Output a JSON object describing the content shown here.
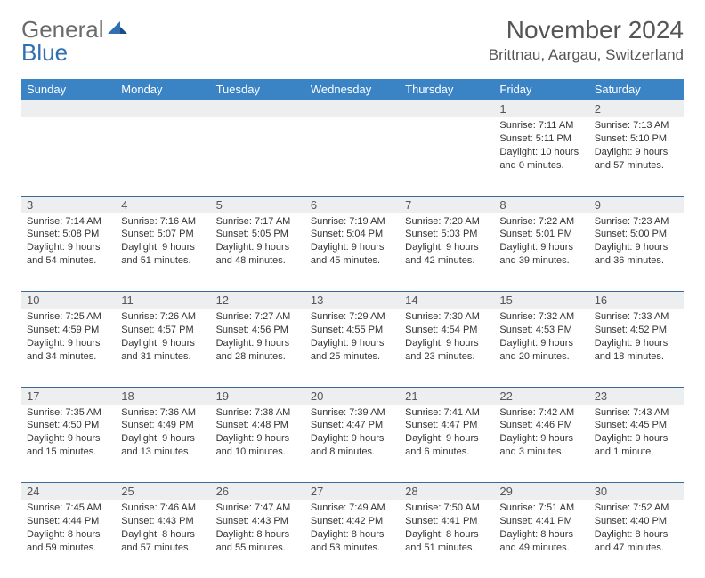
{
  "logo": {
    "general": "General",
    "blue": "Blue"
  },
  "title": "November 2024",
  "location": "Brittnau, Aargau, Switzerland",
  "day_headers": [
    "Sunday",
    "Monday",
    "Tuesday",
    "Wednesday",
    "Thursday",
    "Friday",
    "Saturday"
  ],
  "colors": {
    "header_bg": "#3a84c5",
    "header_text": "#ffffff",
    "daynum_bg": "#eceef0",
    "border": "#3a6a9a",
    "logo_gray": "#6b6b6b",
    "logo_blue": "#2f6fb3"
  },
  "weeks": [
    [
      null,
      null,
      null,
      null,
      null,
      {
        "n": "1",
        "sunrise": "7:11 AM",
        "sunset": "5:11 PM",
        "daylight": "10 hours and 0 minutes."
      },
      {
        "n": "2",
        "sunrise": "7:13 AM",
        "sunset": "5:10 PM",
        "daylight": "9 hours and 57 minutes."
      }
    ],
    [
      {
        "n": "3",
        "sunrise": "7:14 AM",
        "sunset": "5:08 PM",
        "daylight": "9 hours and 54 minutes."
      },
      {
        "n": "4",
        "sunrise": "7:16 AM",
        "sunset": "5:07 PM",
        "daylight": "9 hours and 51 minutes."
      },
      {
        "n": "5",
        "sunrise": "7:17 AM",
        "sunset": "5:05 PM",
        "daylight": "9 hours and 48 minutes."
      },
      {
        "n": "6",
        "sunrise": "7:19 AM",
        "sunset": "5:04 PM",
        "daylight": "9 hours and 45 minutes."
      },
      {
        "n": "7",
        "sunrise": "7:20 AM",
        "sunset": "5:03 PM",
        "daylight": "9 hours and 42 minutes."
      },
      {
        "n": "8",
        "sunrise": "7:22 AM",
        "sunset": "5:01 PM",
        "daylight": "9 hours and 39 minutes."
      },
      {
        "n": "9",
        "sunrise": "7:23 AM",
        "sunset": "5:00 PM",
        "daylight": "9 hours and 36 minutes."
      }
    ],
    [
      {
        "n": "10",
        "sunrise": "7:25 AM",
        "sunset": "4:59 PM",
        "daylight": "9 hours and 34 minutes."
      },
      {
        "n": "11",
        "sunrise": "7:26 AM",
        "sunset": "4:57 PM",
        "daylight": "9 hours and 31 minutes."
      },
      {
        "n": "12",
        "sunrise": "7:27 AM",
        "sunset": "4:56 PM",
        "daylight": "9 hours and 28 minutes."
      },
      {
        "n": "13",
        "sunrise": "7:29 AM",
        "sunset": "4:55 PM",
        "daylight": "9 hours and 25 minutes."
      },
      {
        "n": "14",
        "sunrise": "7:30 AM",
        "sunset": "4:54 PM",
        "daylight": "9 hours and 23 minutes."
      },
      {
        "n": "15",
        "sunrise": "7:32 AM",
        "sunset": "4:53 PM",
        "daylight": "9 hours and 20 minutes."
      },
      {
        "n": "16",
        "sunrise": "7:33 AM",
        "sunset": "4:52 PM",
        "daylight": "9 hours and 18 minutes."
      }
    ],
    [
      {
        "n": "17",
        "sunrise": "7:35 AM",
        "sunset": "4:50 PM",
        "daylight": "9 hours and 15 minutes."
      },
      {
        "n": "18",
        "sunrise": "7:36 AM",
        "sunset": "4:49 PM",
        "daylight": "9 hours and 13 minutes."
      },
      {
        "n": "19",
        "sunrise": "7:38 AM",
        "sunset": "4:48 PM",
        "daylight": "9 hours and 10 minutes."
      },
      {
        "n": "20",
        "sunrise": "7:39 AM",
        "sunset": "4:47 PM",
        "daylight": "9 hours and 8 minutes."
      },
      {
        "n": "21",
        "sunrise": "7:41 AM",
        "sunset": "4:47 PM",
        "daylight": "9 hours and 6 minutes."
      },
      {
        "n": "22",
        "sunrise": "7:42 AM",
        "sunset": "4:46 PM",
        "daylight": "9 hours and 3 minutes."
      },
      {
        "n": "23",
        "sunrise": "7:43 AM",
        "sunset": "4:45 PM",
        "daylight": "9 hours and 1 minute."
      }
    ],
    [
      {
        "n": "24",
        "sunrise": "7:45 AM",
        "sunset": "4:44 PM",
        "daylight": "8 hours and 59 minutes."
      },
      {
        "n": "25",
        "sunrise": "7:46 AM",
        "sunset": "4:43 PM",
        "daylight": "8 hours and 57 minutes."
      },
      {
        "n": "26",
        "sunrise": "7:47 AM",
        "sunset": "4:43 PM",
        "daylight": "8 hours and 55 minutes."
      },
      {
        "n": "27",
        "sunrise": "7:49 AM",
        "sunset": "4:42 PM",
        "daylight": "8 hours and 53 minutes."
      },
      {
        "n": "28",
        "sunrise": "7:50 AM",
        "sunset": "4:41 PM",
        "daylight": "8 hours and 51 minutes."
      },
      {
        "n": "29",
        "sunrise": "7:51 AM",
        "sunset": "4:41 PM",
        "daylight": "8 hours and 49 minutes."
      },
      {
        "n": "30",
        "sunrise": "7:52 AM",
        "sunset": "4:40 PM",
        "daylight": "8 hours and 47 minutes."
      }
    ]
  ],
  "labels": {
    "sunrise": "Sunrise: ",
    "sunset": "Sunset: ",
    "daylight": "Daylight: "
  }
}
